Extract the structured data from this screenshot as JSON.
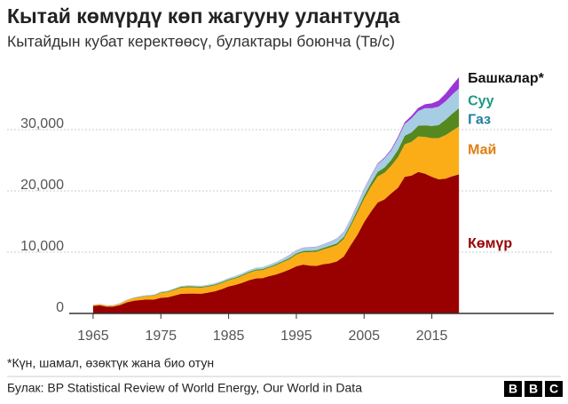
{
  "chart_data": {
    "type": "stacked-area",
    "title": "Кытай көмүрдү көп жагууну улантууда",
    "subtitle": "Кытайдын кубат керектөөсү, булактары боюнча (Тв/с)",
    "x": [
      1965,
      1966,
      1967,
      1968,
      1969,
      1970,
      1971,
      1972,
      1973,
      1974,
      1975,
      1976,
      1977,
      1978,
      1979,
      1980,
      1981,
      1982,
      1983,
      1984,
      1985,
      1986,
      1987,
      1988,
      1989,
      1990,
      1991,
      1992,
      1993,
      1994,
      1995,
      1996,
      1997,
      1998,
      1999,
      2000,
      2001,
      2002,
      2003,
      2004,
      2005,
      2006,
      2007,
      2008,
      2009,
      2010,
      2011,
      2012,
      2013,
      2014,
      2015,
      2016,
      2017,
      2018,
      2019
    ],
    "series": [
      {
        "name": "Көмүр",
        "color": "#990000",
        "label_color": "#990000",
        "values": [
          1230,
          1330,
          1100,
          1130,
          1380,
          1820,
          2060,
          2200,
          2280,
          2270,
          2560,
          2620,
          2910,
          3200,
          3250,
          3240,
          3220,
          3410,
          3620,
          3970,
          4400,
          4650,
          5000,
          5420,
          5710,
          5770,
          6080,
          6360,
          6740,
          7170,
          7700,
          7970,
          7800,
          7770,
          8050,
          8180,
          8500,
          9300,
          11100,
          12800,
          14900,
          16600,
          18100,
          18600,
          19600,
          20500,
          22300,
          22500,
          23100,
          22800,
          22300,
          21900,
          22000,
          22400,
          22700
        ]
      },
      {
        "name": "Май",
        "color": "#fbad17",
        "label_color": "#e07d10",
        "values": [
          130,
          160,
          170,
          180,
          230,
          330,
          440,
          500,
          560,
          630,
          800,
          850,
          930,
          1000,
          1020,
          1000,
          980,
          960,
          970,
          990,
          1000,
          1060,
          1120,
          1200,
          1280,
          1300,
          1380,
          1500,
          1630,
          1680,
          1900,
          2020,
          2200,
          2300,
          2400,
          2600,
          2650,
          2850,
          3100,
          3600,
          3800,
          4050,
          4250,
          4350,
          4500,
          5000,
          5300,
          5500,
          5800,
          6000,
          6300,
          6700,
          7100,
          7400,
          7800
        ]
      },
      {
        "name": "Газ",
        "color": "#55881f",
        "label_color": "#1f7fa0",
        "values": [
          10,
          15,
          15,
          15,
          20,
          30,
          40,
          50,
          60,
          70,
          90,
          110,
          130,
          150,
          160,
          160,
          150,
          140,
          140,
          140,
          140,
          150,
          160,
          160,
          170,
          170,
          170,
          180,
          190,
          200,
          200,
          210,
          230,
          240,
          250,
          270,
          300,
          330,
          370,
          440,
          500,
          600,
          750,
          850,
          950,
          1200,
          1400,
          1550,
          1750,
          1900,
          2000,
          2150,
          2500,
          2800,
          3000
        ]
      },
      {
        "name": "Суу",
        "color": "#a6cde3",
        "label_color": "#1b9a86",
        "values": [
          50,
          55,
          55,
          60,
          65,
          80,
          90,
          100,
          110,
          110,
          120,
          120,
          130,
          140,
          150,
          160,
          170,
          200,
          220,
          230,
          250,
          260,
          270,
          290,
          300,
          340,
          340,
          370,
          410,
          450,
          490,
          500,
          520,
          560,
          560,
          600,
          750,
          780,
          770,
          900,
          1050,
          1150,
          1250,
          1500,
          1550,
          1900,
          1900,
          2300,
          2400,
          2800,
          2900,
          3000,
          3000,
          3100,
          3200
        ]
      },
      {
        "name": "Башкалар*",
        "color": "#9b36d6",
        "label_color": "#111111",
        "values": [
          0,
          0,
          0,
          0,
          0,
          0,
          0,
          0,
          0,
          0,
          0,
          0,
          0,
          0,
          0,
          0,
          0,
          0,
          0,
          0,
          0,
          0,
          0,
          0,
          0,
          0,
          0,
          0,
          0,
          40,
          40,
          40,
          40,
          40,
          40,
          50,
          50,
          60,
          70,
          80,
          90,
          100,
          120,
          150,
          200,
          260,
          320,
          420,
          510,
          640,
          800,
          1000,
          1250,
          1550,
          1850
        ]
      }
    ],
    "xlim": [
      1962,
      2033
    ],
    "xticks": [
      1965,
      1975,
      1985,
      1995,
      2005,
      2015
    ],
    "ylim": [
      0,
      40000
    ],
    "yticks": [
      0,
      {
        "value": 10000,
        "label": "10,000"
      },
      {
        "value": 20000,
        "label": "20,000"
      },
      {
        "value": 30000,
        "label": "30,000"
      }
    ],
    "grid": true,
    "footnote": "*Күн, шамал, өзөктүк жана био отун",
    "source": "Булак: BP Statistical Review of World Energy, Our World in Data",
    "logo": [
      "B",
      "B",
      "C"
    ]
  }
}
